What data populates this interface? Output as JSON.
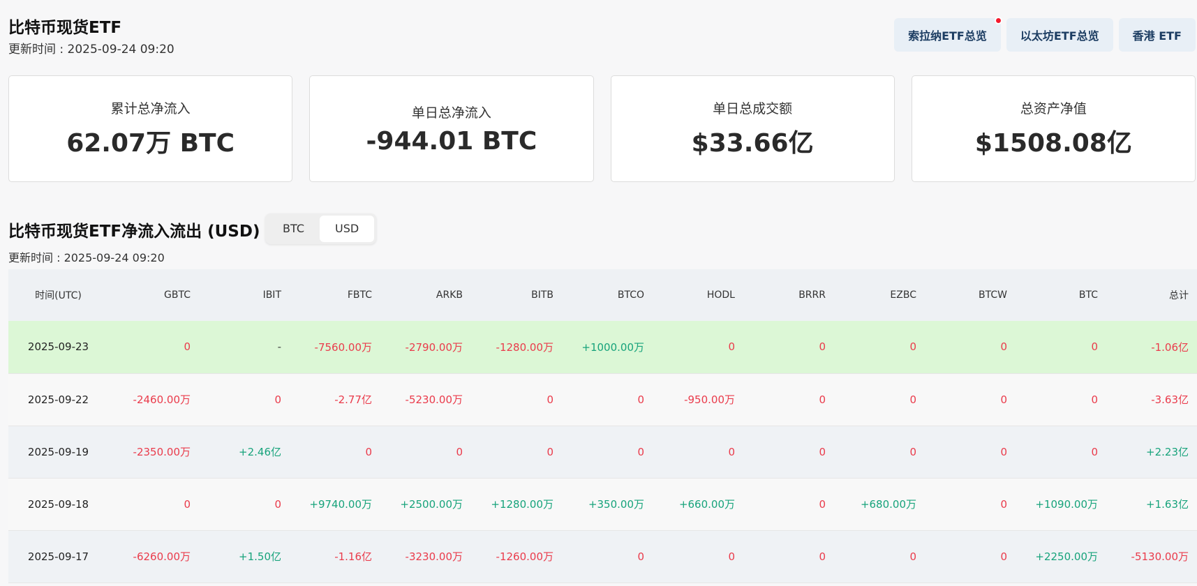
{
  "header": {
    "title": "比特币现货ETF",
    "updated": "更新时间 : 2025-09-24 09:20",
    "buttons": [
      {
        "label": "索拉纳ETF总览",
        "has_dot": true
      },
      {
        "label": "以太坊ETF总览",
        "has_dot": false
      },
      {
        "label": "香港 ETF",
        "has_dot": false
      }
    ]
  },
  "stats": [
    {
      "label": "累计总净流入",
      "value": "62.07万 BTC"
    },
    {
      "label": "单日总净流入",
      "value": "-944.01 BTC"
    },
    {
      "label": "单日总成交额",
      "value": "$33.66亿"
    },
    {
      "label": "总资产净值",
      "value": "$1508.08亿"
    }
  ],
  "section": {
    "title": "比特币现货ETF净流入流出 (USD)",
    "toggle": {
      "options": [
        "BTC",
        "USD"
      ],
      "active": "USD"
    },
    "updated": "更新时间 : 2025-09-24 09:20"
  },
  "table": {
    "columns": [
      "时间(UTC)",
      "GBTC",
      "IBIT",
      "FBTC",
      "ARKB",
      "BITB",
      "BTCO",
      "HODL",
      "BRRR",
      "EZBC",
      "BTCW",
      "BTC",
      "总计"
    ],
    "rows": [
      {
        "highlight": true,
        "cells": [
          "2025-09-23",
          "0",
          "-",
          "-7560.00万",
          "-2790.00万",
          "-1280.00万",
          "+1000.00万",
          "0",
          "0",
          "0",
          "0",
          "0",
          "-1.06亿"
        ]
      },
      {
        "highlight": false,
        "cells": [
          "2025-09-22",
          "-2460.00万",
          "0",
          "-2.77亿",
          "-5230.00万",
          "0",
          "0",
          "-950.00万",
          "0",
          "0",
          "0",
          "0",
          "-3.63亿"
        ]
      },
      {
        "highlight": false,
        "cells": [
          "2025-09-19",
          "-2350.00万",
          "+2.46亿",
          "0",
          "0",
          "0",
          "0",
          "0",
          "0",
          "0",
          "0",
          "0",
          "+2.23亿"
        ]
      },
      {
        "highlight": false,
        "cells": [
          "2025-09-18",
          "0",
          "0",
          "+9740.00万",
          "+2500.00万",
          "+1280.00万",
          "+350.00万",
          "+660.00万",
          "0",
          "+680.00万",
          "0",
          "+1090.00万",
          "+1.63亿"
        ]
      },
      {
        "highlight": false,
        "cells": [
          "2025-09-17",
          "-6260.00万",
          "+1.50亿",
          "-1.16亿",
          "-3230.00万",
          "-1260.00万",
          "0",
          "0",
          "0",
          "0",
          "0",
          "+2250.00万",
          "-5130.00万"
        ]
      }
    ]
  },
  "colors": {
    "positive": "#17a37b",
    "negative": "#ea3b4b",
    "highlight_row": "#dcf7d6",
    "button_bg": "#e8eff6"
  }
}
